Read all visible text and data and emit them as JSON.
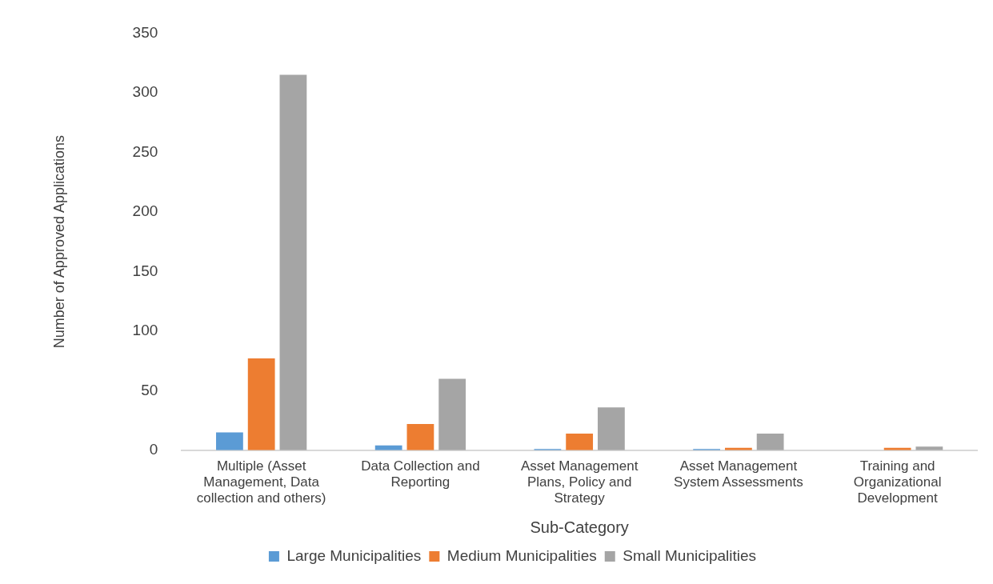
{
  "chart_data": {
    "type": "bar",
    "xlabel": "Sub-Category",
    "ylabel": "Number of Approved Applications",
    "categories": [
      [
        "Multiple (Asset",
        "Management, Data",
        "collection and others)"
      ],
      [
        "Data Collection and",
        "Reporting"
      ],
      [
        "Asset Management",
        "Plans, Policy and",
        "Strategy"
      ],
      [
        "Asset Management",
        "System Assessments"
      ],
      [
        "Training and",
        "Organizational",
        "Development"
      ]
    ],
    "series": [
      {
        "name": "Large Municipalities",
        "color": "#5b9bd5",
        "values": [
          15,
          4,
          1,
          1,
          0
        ]
      },
      {
        "name": "Medium Municipalities",
        "color": "#ed7d31",
        "values": [
          77,
          22,
          14,
          2,
          2
        ]
      },
      {
        "name": "Small Municipalities",
        "color": "#a5a5a5",
        "values": [
          315,
          60,
          36,
          14,
          3
        ]
      }
    ],
    "ylim": [
      0,
      350
    ],
    "yticks": [
      0,
      50,
      100,
      150,
      200,
      250,
      300,
      350
    ],
    "grid": false,
    "legend": "bottom"
  }
}
